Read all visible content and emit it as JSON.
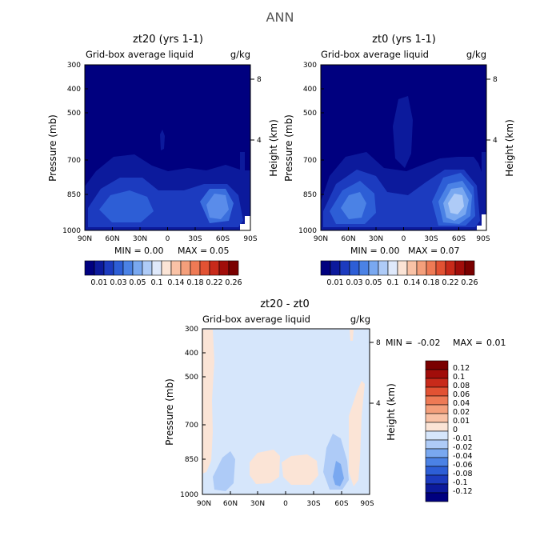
{
  "main_title": "ANN",
  "chart_data": [
    {
      "type": "heatmap",
      "title": "zt20 (yrs 1-1)",
      "subtitle": "Grid-box average liquid",
      "units": "g/kg",
      "ylabel": "Pressure (mb)",
      "ylabel_right": "Height (km)",
      "x_ticks": [
        "90N",
        "60N",
        "30N",
        "0",
        "30S",
        "60S",
        "90S"
      ],
      "y_ticks": [
        "300",
        "400",
        "500",
        "700",
        "850",
        "1000"
      ],
      "y_ticks_right": [
        "8",
        "4"
      ],
      "ylim": [
        1000,
        300
      ],
      "y_scale": "log-pressure",
      "stats": {
        "min_label": "MIN =",
        "min": "0.00",
        "max_label": "MAX =",
        "max": "0.05"
      },
      "colorbar_labels": [
        "0.01",
        "0.03",
        "0.05",
        "0.1",
        "0.14",
        "0.18",
        "0.22",
        "0.26"
      ],
      "colors": [
        "#00007f",
        "#0c1a9c",
        "#1c3bbf",
        "#2d5ed6",
        "#4b82e5",
        "#79a8f0",
        "#aecbf7",
        "#dfe9fb",
        "#fbe4d6",
        "#f9c2a6",
        "#f49f7b",
        "#ee7a55",
        "#e25233",
        "#c82a1a",
        "#a10d0a",
        "#7a0000"
      ]
    },
    {
      "type": "heatmap",
      "title": "zt0 (yrs 1-1)",
      "subtitle": "Grid-box average liquid",
      "units": "g/kg",
      "ylabel": "Pressure (mb)",
      "ylabel_right": "Height (km)",
      "x_ticks": [
        "90N",
        "60N",
        "30N",
        "0",
        "30S",
        "60S",
        "90S"
      ],
      "y_ticks": [
        "300",
        "400",
        "500",
        "700",
        "850",
        "1000"
      ],
      "y_ticks_right": [
        "8",
        "4"
      ],
      "ylim": [
        1000,
        300
      ],
      "y_scale": "log-pressure",
      "stats": {
        "min_label": "MIN =",
        "min": "0.00",
        "max_label": "MAX =",
        "max": "0.07"
      },
      "colorbar_labels": [
        "0.01",
        "0.03",
        "0.05",
        "0.1",
        "0.14",
        "0.18",
        "0.22",
        "0.26"
      ],
      "colors": [
        "#00007f",
        "#0c1a9c",
        "#1c3bbf",
        "#2d5ed6",
        "#4b82e5",
        "#79a8f0",
        "#aecbf7",
        "#dfe9fb",
        "#fbe4d6",
        "#f9c2a6",
        "#f49f7b",
        "#ee7a55",
        "#e25233",
        "#c82a1a",
        "#a10d0a",
        "#7a0000"
      ]
    },
    {
      "type": "heatmap",
      "title": "zt20 - zt0",
      "subtitle": "Grid-box average liquid",
      "units": "g/kg",
      "ylabel": "Pressure (mb)",
      "ylabel_right": "Height (km)",
      "x_ticks": [
        "90N",
        "60N",
        "30N",
        "0",
        "30S",
        "60S",
        "90S"
      ],
      "y_ticks": [
        "300",
        "400",
        "500",
        "700",
        "850",
        "1000"
      ],
      "y_ticks_right": [
        "8",
        "4"
      ],
      "ylim": [
        1000,
        300
      ],
      "y_scale": "log-pressure",
      "stats": {
        "min_label": "MIN =",
        "min": "-0.02",
        "max_label": "MAX =",
        "max": "0.01"
      },
      "colorbar_labels": [
        "0.12",
        "0.1",
        "0.08",
        "0.06",
        "0.04",
        "0.02",
        "0.01",
        "0",
        "-0.01",
        "-0.02",
        "-0.04",
        "-0.06",
        "-0.08",
        "-0.1",
        "-0.12"
      ],
      "colors": [
        "#7a0000",
        "#a10d0a",
        "#c82a1a",
        "#e25233",
        "#ee7a55",
        "#f49f7b",
        "#f9c2a6",
        "#fbe4d6",
        "#d6e6fb",
        "#aecbf7",
        "#79a8f0",
        "#4b82e5",
        "#2d5ed6",
        "#1c3bbf",
        "#0c1a9c",
        "#00007f"
      ]
    }
  ]
}
